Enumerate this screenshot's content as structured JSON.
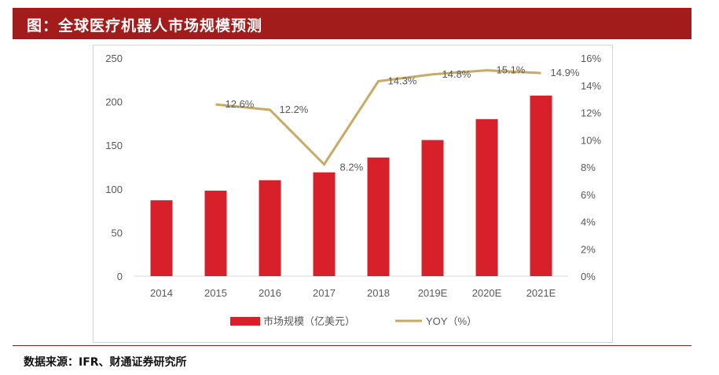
{
  "header": {
    "title": "图：全球医疗机器人市场规模预测"
  },
  "footer": {
    "source": "数据来源：IFR、财通证券研究所"
  },
  "colors": {
    "title_bg": "#a31c1c",
    "bar": "#d7202a",
    "line": "#c9aa62"
  },
  "chart_data": {
    "type": "bar",
    "categories": [
      "2014",
      "2015",
      "2016",
      "2017",
      "2018",
      "2019E",
      "2020E",
      "2021E"
    ],
    "series": [
      {
        "name": "市场规模（亿美元）",
        "type": "bar",
        "axis": "left",
        "values": [
          87,
          98,
          110,
          119,
          136,
          156,
          180,
          207
        ]
      },
      {
        "name": "YOY（%）",
        "type": "line",
        "axis": "right",
        "values": [
          null,
          12.6,
          12.2,
          8.2,
          14.3,
          14.8,
          15.1,
          14.9
        ],
        "labels": [
          "",
          "12.6%",
          "12.2%",
          "8.2%",
          "14.3%",
          "14.8%",
          "15.1%",
          "14.9%"
        ]
      }
    ],
    "ylim": [
      0,
      250
    ],
    "y_ticks": [
      "0",
      "50",
      "100",
      "150",
      "200",
      "250"
    ],
    "y2lim": [
      0,
      16
    ],
    "y2_ticks": [
      "0%",
      "2%",
      "4%",
      "6%",
      "8%",
      "10%",
      "12%",
      "14%",
      "16%"
    ],
    "grid": false,
    "legend_position": "bottom"
  }
}
